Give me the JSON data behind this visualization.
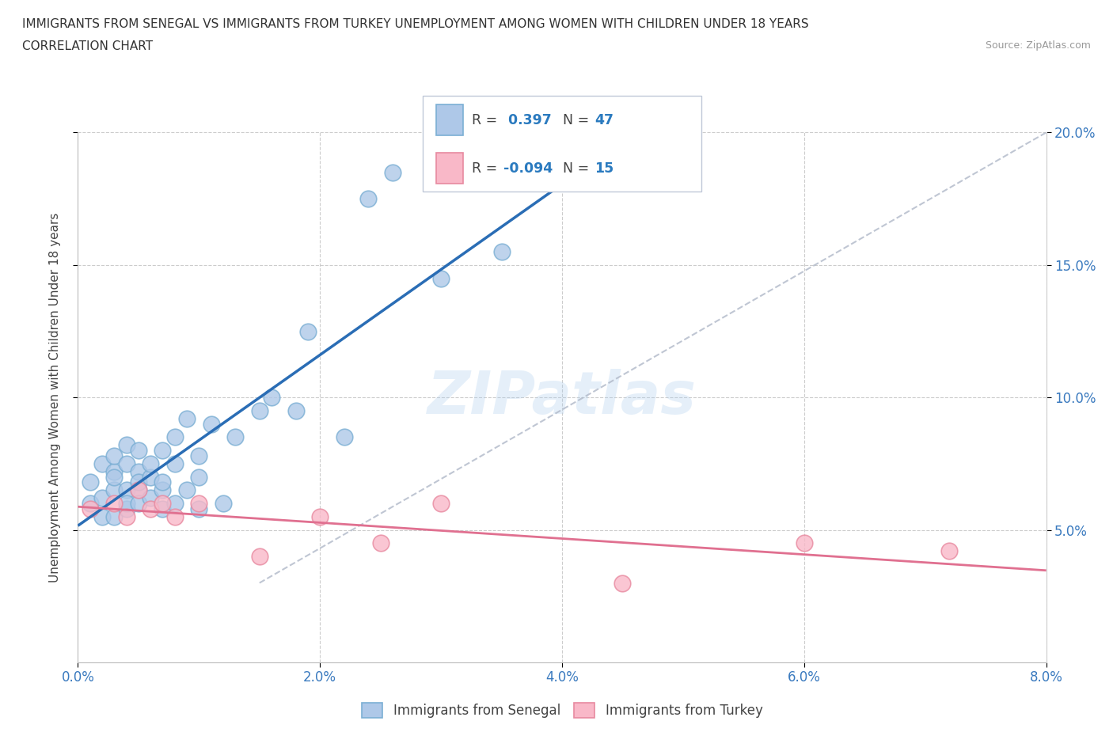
{
  "title_line1": "IMMIGRANTS FROM SENEGAL VS IMMIGRANTS FROM TURKEY UNEMPLOYMENT AMONG WOMEN WITH CHILDREN UNDER 18 YEARS",
  "title_line2": "CORRELATION CHART",
  "source_text": "Source: ZipAtlas.com",
  "ylabel": "Unemployment Among Women with Children Under 18 years",
  "xmin": 0.0,
  "xmax": 0.08,
  "ymin": 0.0,
  "ymax": 0.2,
  "x_tick_values": [
    0.0,
    0.02,
    0.04,
    0.06,
    0.08
  ],
  "y_tick_values": [
    0.05,
    0.1,
    0.15,
    0.2
  ],
  "senegal_fill_color": "#aec8e8",
  "senegal_edge_color": "#7bafd4",
  "turkey_fill_color": "#f9b8c8",
  "turkey_edge_color": "#e88aa0",
  "senegal_line_color": "#2a6db5",
  "turkey_line_color": "#e07090",
  "diag_line_color": "#b0b8c8",
  "R_senegal": 0.397,
  "N_senegal": 47,
  "R_turkey": -0.094,
  "N_turkey": 15,
  "legend_label_senegal": "Immigrants from Senegal",
  "legend_label_turkey": "Immigrants from Turkey",
  "watermark": "ZIPatlas",
  "senegal_x": [
    0.001,
    0.001,
    0.002,
    0.002,
    0.002,
    0.003,
    0.003,
    0.003,
    0.003,
    0.003,
    0.004,
    0.004,
    0.004,
    0.004,
    0.004,
    0.005,
    0.005,
    0.005,
    0.005,
    0.005,
    0.006,
    0.006,
    0.006,
    0.007,
    0.007,
    0.007,
    0.007,
    0.008,
    0.008,
    0.008,
    0.009,
    0.009,
    0.01,
    0.01,
    0.01,
    0.011,
    0.012,
    0.013,
    0.015,
    0.016,
    0.018,
    0.019,
    0.022,
    0.024,
    0.026,
    0.03,
    0.035
  ],
  "senegal_y": [
    0.068,
    0.06,
    0.075,
    0.062,
    0.055,
    0.072,
    0.065,
    0.078,
    0.055,
    0.07,
    0.065,
    0.082,
    0.058,
    0.075,
    0.06,
    0.065,
    0.072,
    0.08,
    0.06,
    0.068,
    0.07,
    0.062,
    0.075,
    0.065,
    0.058,
    0.08,
    0.068,
    0.075,
    0.085,
    0.06,
    0.065,
    0.092,
    0.078,
    0.058,
    0.07,
    0.09,
    0.06,
    0.085,
    0.095,
    0.1,
    0.095,
    0.125,
    0.085,
    0.175,
    0.185,
    0.145,
    0.155
  ],
  "turkey_x": [
    0.001,
    0.003,
    0.004,
    0.005,
    0.006,
    0.007,
    0.008,
    0.01,
    0.015,
    0.02,
    0.025,
    0.03,
    0.045,
    0.06,
    0.072
  ],
  "turkey_y": [
    0.058,
    0.06,
    0.055,
    0.065,
    0.058,
    0.06,
    0.055,
    0.06,
    0.04,
    0.055,
    0.045,
    0.06,
    0.03,
    0.045,
    0.042
  ]
}
